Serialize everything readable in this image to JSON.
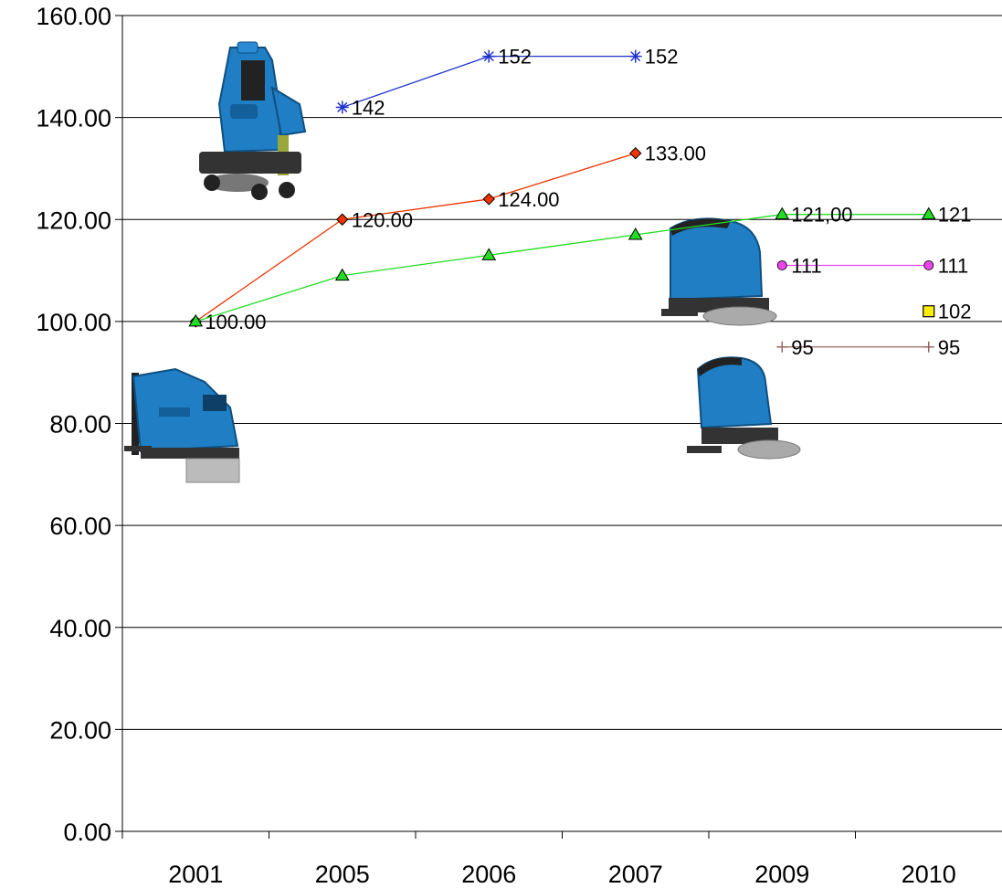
{
  "chart_data": {
    "type": "line",
    "title": "",
    "xlabel": "",
    "ylabel": "",
    "categories": [
      "2001",
      "2005",
      "2006",
      "2007",
      "2009",
      "2010"
    ],
    "ylim": [
      0,
      160
    ],
    "y_ticks": [
      "0.00",
      "20.00",
      "40.00",
      "60.00",
      "80.00",
      "100.00",
      "120.00",
      "140.00",
      "160.00"
    ],
    "grid": true,
    "legend": "none",
    "series": [
      {
        "color": "#2233cc",
        "marker": "asterisk",
        "values": [
          null,
          142,
          152,
          152,
          null,
          null
        ],
        "labels": [
          "",
          "142",
          "152",
          "152",
          "",
          ""
        ]
      },
      {
        "color": "#ee3300",
        "marker": "diamond",
        "values": [
          100,
          120,
          124,
          133,
          null,
          null
        ],
        "labels": [
          "100.00",
          "120.00",
          "124.00",
          "133.00",
          "",
          ""
        ]
      },
      {
        "color": "#22dd22",
        "marker": "triangle",
        "values": [
          100,
          109,
          113,
          117,
          121,
          121
        ],
        "labels": [
          "",
          "",
          "",
          "",
          "121,00",
          "121"
        ]
      },
      {
        "color": "#ee44ee",
        "marker": "circle",
        "values": [
          null,
          null,
          null,
          null,
          111,
          111
        ],
        "labels": [
          "",
          "",
          "",
          "",
          "111",
          "111"
        ]
      },
      {
        "color": "#ffee00",
        "marker": "square",
        "values": [
          null,
          null,
          null,
          null,
          null,
          102
        ],
        "labels": [
          "",
          "",
          "",
          "",
          "",
          "102"
        ]
      },
      {
        "color": "#996666",
        "marker": "plus",
        "values": [
          null,
          null,
          null,
          null,
          95,
          95
        ],
        "labels": [
          "",
          "",
          "",
          "",
          "95",
          "95"
        ]
      }
    ],
    "images": [
      {
        "icon": "ride-on-scrubber-icon"
      },
      {
        "icon": "walk-behind-scrubber-large-icon"
      },
      {
        "icon": "walk-behind-scrubber-medium-icon"
      },
      {
        "icon": "walk-behind-scrubber-small-icon"
      }
    ]
  }
}
